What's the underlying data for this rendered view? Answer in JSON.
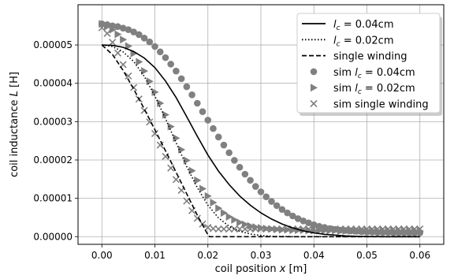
{
  "chart_data": {
    "type": "line",
    "title": "",
    "xlabel": "coil position x [m]",
    "ylabel": "coil inductance L [H]",
    "xlim": [
      -0.0045,
      0.0645
    ],
    "ylim": [
      -2e-06,
      6.05e-05
    ],
    "x_ticks": [
      0.0,
      0.01,
      0.02,
      0.03,
      0.04,
      0.05,
      0.06
    ],
    "x_tick_labels": [
      "0.00",
      "0.01",
      "0.02",
      "0.03",
      "0.04",
      "0.05",
      "0.06"
    ],
    "y_ticks": [
      0.0,
      1e-05,
      2e-05,
      3e-05,
      4e-05,
      5e-05
    ],
    "y_tick_labels": [
      "0.00000",
      "0.00001",
      "0.00002",
      "0.00003",
      "0.00004",
      "0.00005"
    ],
    "grid": true,
    "legend_position": "top-right",
    "colors": {
      "theory": "#000000",
      "sim": "#808080"
    },
    "series": [
      {
        "name": "l_c = 0.04cm",
        "kind": "line",
        "dash": "solid",
        "x": [
          0.0,
          0.002,
          0.004,
          0.006,
          0.008,
          0.01,
          0.012,
          0.014,
          0.016,
          0.018,
          0.02,
          0.022,
          0.024,
          0.026,
          0.028,
          0.03,
          0.032,
          0.034,
          0.036,
          0.038,
          0.04,
          0.042,
          0.044,
          0.046,
          0.048,
          0.05,
          0.052,
          0.054,
          0.056,
          0.058,
          0.06
        ],
        "y": [
          5e-05,
          4.99e-05,
          4.94e-05,
          4.83e-05,
          4.66e-05,
          4.41e-05,
          4.06e-05,
          3.63e-05,
          3.13e-05,
          2.62e-05,
          2.13e-05,
          1.71e-05,
          1.36e-05,
          1.06e-05,
          8.2e-06,
          6.2e-06,
          4.6e-06,
          3.3e-06,
          2.3e-06,
          1.5e-06,
          1e-06,
          6e-07,
          4e-07,
          2e-07,
          1e-07,
          5e-08,
          2e-08,
          0.0,
          0.0,
          0.0,
          0.0
        ]
      },
      {
        "name": "l_c = 0.02cm",
        "kind": "line",
        "dash": "dotted",
        "x": [
          0.0,
          0.002,
          0.004,
          0.006,
          0.008,
          0.01,
          0.012,
          0.014,
          0.016,
          0.018,
          0.02,
          0.022,
          0.024,
          0.026,
          0.028,
          0.03,
          0.032,
          0.034,
          0.036,
          0.038,
          0.04,
          0.045,
          0.05,
          0.055,
          0.06
        ],
        "y": [
          5e-05,
          4.96e-05,
          4.82e-05,
          4.57e-05,
          4.18e-05,
          3.67e-05,
          3.08e-05,
          2.45e-05,
          1.83e-05,
          1.28e-05,
          8.2e-06,
          4.9e-06,
          2.7e-06,
          1.4e-06,
          7e-07,
          3e-07,
          1e-07,
          5e-08,
          0.0,
          0.0,
          0.0,
          0.0,
          0.0,
          0.0,
          0.0
        ]
      },
      {
        "name": "single winding",
        "kind": "line",
        "dash": "dashed",
        "x": [
          0.0,
          0.002,
          0.004,
          0.006,
          0.008,
          0.01,
          0.012,
          0.014,
          0.016,
          0.018,
          0.02,
          0.0203,
          0.025,
          0.03,
          0.035,
          0.04,
          0.045,
          0.05,
          0.055,
          0.06
        ],
        "y": [
          5e-05,
          4.75e-05,
          4.34e-05,
          3.85e-05,
          3.33e-05,
          2.79e-05,
          2.24e-05,
          1.68e-05,
          1.12e-05,
          5.6e-06,
          5e-07,
          0.0,
          0.0,
          0.0,
          0.0,
          0.0,
          0.0,
          0.0,
          0.0,
          0.0
        ]
      },
      {
        "name": "sim l_c = 0.04cm",
        "kind": "marker",
        "marker": "circle",
        "x": [
          0.0,
          0.001,
          0.002,
          0.003,
          0.004,
          0.005,
          0.006,
          0.007,
          0.008,
          0.009,
          0.01,
          0.011,
          0.012,
          0.013,
          0.014,
          0.015,
          0.016,
          0.017,
          0.018,
          0.019,
          0.02,
          0.021,
          0.022,
          0.023,
          0.024,
          0.025,
          0.026,
          0.027,
          0.028,
          0.029,
          0.03,
          0.031,
          0.032,
          0.033,
          0.034,
          0.035,
          0.036,
          0.037,
          0.038,
          0.039,
          0.04,
          0.041,
          0.042,
          0.043,
          0.044,
          0.045,
          0.046,
          0.047,
          0.048,
          0.049,
          0.05,
          0.051,
          0.052,
          0.053,
          0.054,
          0.055,
          0.056,
          0.057,
          0.058,
          0.059,
          0.06
        ],
        "y": [
          5.55e-05,
          5.53e-05,
          5.5e-05,
          5.48e-05,
          5.44e-05,
          5.4e-05,
          5.34e-05,
          5.27e-05,
          5.18e-05,
          5.08e-05,
          4.96e-05,
          4.82e-05,
          4.67e-05,
          4.5e-05,
          4.32e-05,
          4.12e-05,
          3.91e-05,
          3.7e-05,
          3.48e-05,
          3.26e-05,
          3.04e-05,
          2.82e-05,
          2.6e-05,
          2.39e-05,
          2.19e-05,
          1.99e-05,
          1.81e-05,
          1.63e-05,
          1.47e-05,
          1.31e-05,
          1.17e-05,
          1.04e-05,
          9.2e-06,
          8.1e-06,
          7.1e-06,
          6.2e-06,
          5.4e-06,
          4.7e-06,
          4.1e-06,
          3.6e-06,
          3.1e-06,
          2.7e-06,
          2.4e-06,
          2.1e-06,
          1.9e-06,
          1.7e-06,
          1.6e-06,
          1.5e-06,
          1.4e-06,
          1.3e-06,
          1.2e-06,
          1.2e-06,
          1.1e-06,
          1.1e-06,
          1.1e-06,
          1e-06,
          1e-06,
          1e-06,
          1e-06,
          1e-06,
          1e-06
        ]
      },
      {
        "name": "sim l_c = 0.02cm",
        "kind": "marker",
        "marker": "triangle-right",
        "x": [
          0.0,
          0.001,
          0.002,
          0.003,
          0.004,
          0.005,
          0.006,
          0.007,
          0.008,
          0.009,
          0.01,
          0.011,
          0.012,
          0.013,
          0.014,
          0.015,
          0.016,
          0.017,
          0.018,
          0.019,
          0.02,
          0.021,
          0.022,
          0.023,
          0.024,
          0.025,
          0.026,
          0.027,
          0.028,
          0.029,
          0.03,
          0.031,
          0.032,
          0.033,
          0.034,
          0.035,
          0.036,
          0.037,
          0.038,
          0.039,
          0.04,
          0.041,
          0.042,
          0.043,
          0.044,
          0.045,
          0.046,
          0.047,
          0.048,
          0.049,
          0.05,
          0.051,
          0.052,
          0.053,
          0.054,
          0.055,
          0.056,
          0.057,
          0.058,
          0.059,
          0.06
        ],
        "y": [
          5.55e-05,
          5.48e-05,
          5.4e-05,
          5.28e-05,
          5.14e-05,
          4.97e-05,
          4.78e-05,
          4.56e-05,
          4.32e-05,
          4.05e-05,
          3.77e-05,
          3.48e-05,
          3.18e-05,
          2.87e-05,
          2.57e-05,
          2.27e-05,
          1.99e-05,
          1.72e-05,
          1.47e-05,
          1.25e-05,
          1.06e-05,
          8.9e-06,
          7.4e-06,
          6.2e-06,
          5.2e-06,
          4.4e-06,
          3.7e-06,
          3.2e-06,
          2.8e-06,
          2.5e-06,
          2.3e-06,
          2.1e-06,
          2e-06,
          1.9e-06,
          1.8e-06,
          1.8e-06,
          1.7e-06,
          1.7e-06,
          1.7e-06,
          1.6e-06,
          1.6e-06,
          1.6e-06,
          1.6e-06,
          1.6e-06,
          1.6e-06,
          1.5e-06,
          1.5e-06,
          1.5e-06,
          1.5e-06,
          1.5e-06,
          1.5e-06,
          1.5e-06,
          1.5e-06,
          1.5e-06,
          1.5e-06,
          1.5e-06,
          1.5e-06,
          1.5e-06,
          1.5e-06,
          1.5e-06,
          1.5e-06
        ]
      },
      {
        "name": "sim single winding",
        "kind": "marker",
        "marker": "x",
        "x": [
          0.0,
          0.001,
          0.002,
          0.003,
          0.004,
          0.005,
          0.006,
          0.007,
          0.008,
          0.009,
          0.01,
          0.011,
          0.012,
          0.013,
          0.014,
          0.015,
          0.016,
          0.017,
          0.018,
          0.019,
          0.02,
          0.021,
          0.022,
          0.023,
          0.024,
          0.025,
          0.026,
          0.027,
          0.028,
          0.029,
          0.03,
          0.031,
          0.032,
          0.033,
          0.034,
          0.035,
          0.036,
          0.037,
          0.038,
          0.039,
          0.04,
          0.041,
          0.042,
          0.043,
          0.044,
          0.045,
          0.046,
          0.047,
          0.048,
          0.049,
          0.05,
          0.051,
          0.052,
          0.053,
          0.054,
          0.055,
          0.056,
          0.057,
          0.058,
          0.059,
          0.06
        ],
        "y": [
          5.45e-05,
          5.3e-05,
          5.07e-05,
          4.79e-05,
          4.49e-05,
          4.19e-05,
          3.89e-05,
          3.59e-05,
          3.29e-05,
          2.99e-05,
          2.69e-05,
          2.39e-05,
          2.09e-05,
          1.79e-05,
          1.49e-05,
          1.21e-05,
          9.3e-06,
          6.8e-06,
          4.8e-06,
          3.3e-06,
          2.4e-06,
          2.1e-06,
          2e-06,
          2e-06,
          2e-06,
          2e-06,
          2e-06,
          2e-06,
          2e-06,
          2e-06,
          2e-06,
          2e-06,
          2e-06,
          2e-06,
          2e-06,
          2e-06,
          2e-06,
          2e-06,
          2e-06,
          2e-06,
          2e-06,
          2e-06,
          2e-06,
          2e-06,
          2e-06,
          2e-06,
          2e-06,
          2e-06,
          2e-06,
          2e-06,
          2e-06,
          2e-06,
          2e-06,
          2e-06,
          2e-06,
          2e-06,
          2e-06,
          2e-06,
          2e-06,
          2e-06,
          2e-06
        ]
      }
    ]
  }
}
